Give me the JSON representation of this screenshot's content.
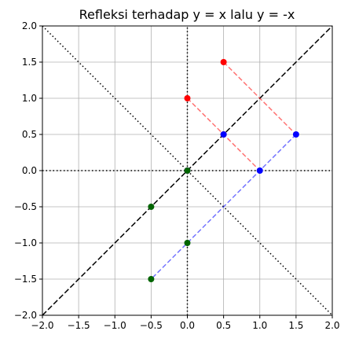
{
  "chart_data": {
    "type": "scatter",
    "title": "Refleksi terhadap y = x lalu y = -x",
    "xlabel": "",
    "ylabel": "",
    "xlim": [
      -2.0,
      2.0
    ],
    "ylim": [
      -2.0,
      2.0
    ],
    "xticks": [
      "−2.0",
      "−1.5",
      "−1.0",
      "−0.5",
      "0.0",
      "0.5",
      "1.0",
      "1.5",
      "2.0"
    ],
    "yticks": [
      "−2.0",
      "−1.5",
      "−1.0",
      "−0.5",
      "0.0",
      "0.5",
      "1.0",
      "1.5",
      "2.0"
    ],
    "xtick_values": [
      -2.0,
      -1.5,
      -1.0,
      -0.5,
      0.0,
      0.5,
      1.0,
      1.5,
      2.0
    ],
    "ytick_values": [
      -2.0,
      -1.5,
      -1.0,
      -0.5,
      0.0,
      0.5,
      1.0,
      1.5,
      2.0
    ],
    "grid": true,
    "aspect": "equal",
    "reference_lines": [
      {
        "kind": "y=x",
        "style": "dashed",
        "color": "#000000"
      },
      {
        "kind": "y=-x",
        "style": "dotted",
        "color": "#000000"
      },
      {
        "kind": "x=0",
        "style": "dotted",
        "color": "#000000"
      },
      {
        "kind": "y=0",
        "style": "dotted",
        "color": "#000000"
      }
    ],
    "series": [
      {
        "color": "#ff0000",
        "points": [
          {
            "x": 0.0,
            "y": 1.0
          },
          {
            "x": 0.5,
            "y": 1.5
          },
          {
            "x": 0.5,
            "y": 0.5
          },
          {
            "x": 0.0,
            "y": 0.0
          }
        ]
      },
      {
        "color": "#0000ff",
        "points": [
          {
            "x": 1.0,
            "y": 0.0
          },
          {
            "x": 1.5,
            "y": 0.5
          },
          {
            "x": 0.5,
            "y": 0.5
          },
          {
            "x": 0.0,
            "y": 0.0
          }
        ]
      },
      {
        "color": "#006400",
        "points": [
          {
            "x": 0.0,
            "y": -1.0
          },
          {
            "x": -0.5,
            "y": -0.5
          },
          {
            "x": -0.5,
            "y": -1.5
          },
          {
            "x": 0.0,
            "y": 0.0
          }
        ]
      }
    ],
    "connectors": [
      {
        "from": {
          "x": 0.0,
          "y": 1.0
        },
        "to": {
          "x": 1.0,
          "y": 0.0
        },
        "color": "#ff0000",
        "style": "dashed"
      },
      {
        "from": {
          "x": 0.5,
          "y": 1.5
        },
        "to": {
          "x": 1.5,
          "y": 0.5
        },
        "color": "#ff0000",
        "style": "dashed"
      },
      {
        "from": {
          "x": 1.5,
          "y": 0.5
        },
        "to": {
          "x": -0.5,
          "y": -1.5
        },
        "color": "#0000ff",
        "style": "dashed"
      }
    ]
  }
}
